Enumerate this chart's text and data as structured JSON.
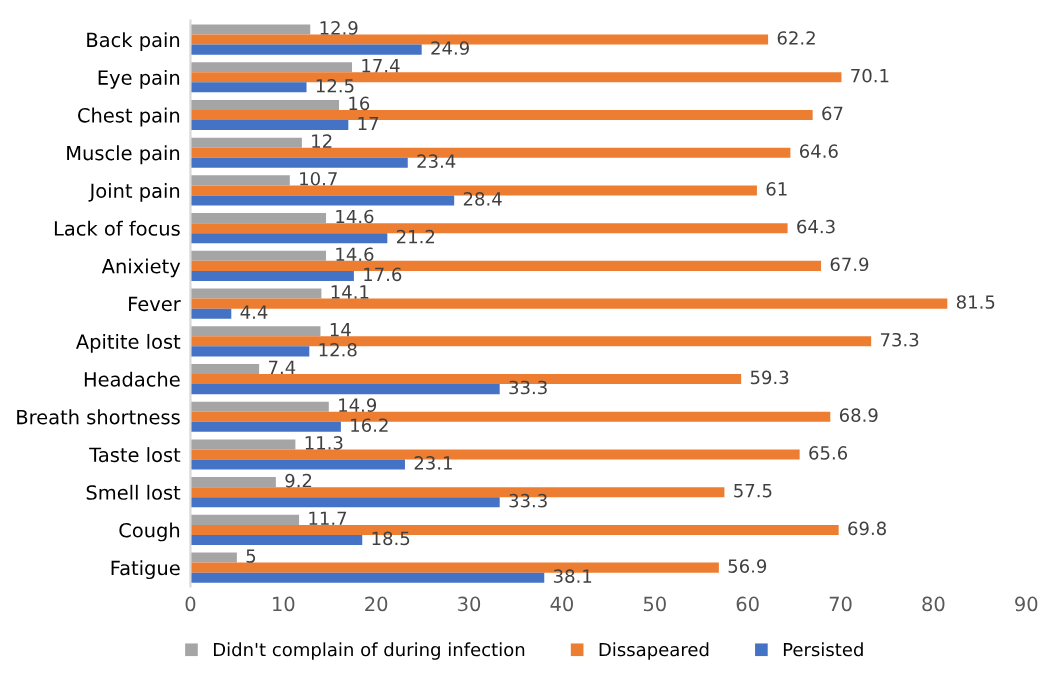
{
  "chart_data": {
    "type": "bar",
    "orientation": "horizontal",
    "categories": [
      "Back pain",
      "Eye pain",
      "Chest pain",
      "Muscle pain",
      "Joint pain",
      "Lack of focus",
      "Anixiety",
      "Fever",
      "Apitite lost",
      "Headache",
      "Breath shortness",
      "Taste lost",
      "Smell lost",
      "Cough",
      "Fatigue"
    ],
    "series": [
      {
        "name": "Didn't complain of during infection",
        "color": "#a5a5a5",
        "values": [
          12.9,
          17.4,
          16,
          12,
          10.7,
          14.6,
          14.6,
          14.1,
          14,
          7.4,
          14.9,
          11.3,
          9.2,
          11.7,
          5
        ]
      },
      {
        "name": "Dissapeared",
        "color": "#ed7d31",
        "values": [
          62.2,
          70.1,
          67,
          64.6,
          61,
          64.3,
          67.9,
          81.5,
          73.3,
          59.3,
          68.9,
          65.6,
          57.5,
          69.8,
          56.9
        ]
      },
      {
        "name": "Persisted",
        "color": "#4472c4",
        "values": [
          24.9,
          12.5,
          17,
          23.4,
          28.4,
          21.2,
          17.6,
          4.4,
          12.8,
          33.3,
          16.2,
          23.1,
          33.3,
          18.5,
          38.1
        ]
      }
    ],
    "xlim": [
      0,
      90
    ],
    "xticks": [
      0,
      10,
      20,
      30,
      40,
      50,
      60,
      70,
      80,
      90
    ],
    "data_labels": true,
    "legend": "bottom",
    "grid": false
  }
}
